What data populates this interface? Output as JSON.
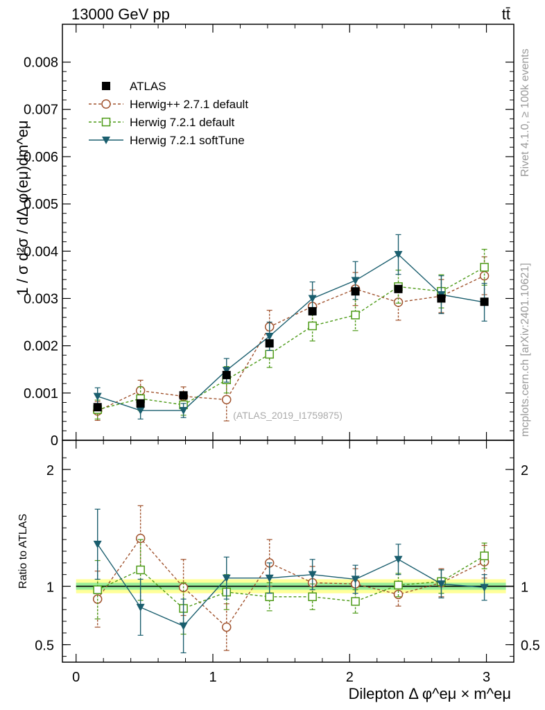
{
  "header": {
    "energy_label": "13000 GeV pp",
    "process_label": "tt̄",
    "side_label_top": "Rivet 4.1.0, ≥ 100k events",
    "side_label_bottom": "mcplots.cern.ch [arXiv:2401.10621]",
    "analysis_id": "(ATLAS_2019_I1759875)"
  },
  "chart_data": [
    {
      "type": "scatter",
      "panel": "main",
      "ylabel": "1 / σ d²σ / dΔ φ(eμ)dm^eμ",
      "xlabel": "Dilepton Δ φ^eμ × m^eμ",
      "xlim": [
        -0.1,
        3.2
      ],
      "ylim": [
        0,
        0.0088
      ],
      "xticks": [
        0,
        1,
        2,
        3
      ],
      "yticks": [
        0,
        0.001,
        0.002,
        0.003,
        0.004,
        0.005,
        0.006,
        0.007,
        0.008
      ],
      "ytick_labels": [
        "0",
        "0.001",
        "0.002",
        "0.003",
        "0.004",
        "0.005",
        "0.006",
        "0.007",
        "0.008"
      ],
      "x": [
        0.157,
        0.471,
        0.785,
        1.1,
        1.414,
        1.728,
        2.042,
        2.356,
        2.67,
        2.985
      ],
      "series": [
        {
          "name": "ATLAS",
          "color": "#000000",
          "marker": "filled-square",
          "line": "none",
          "values": [
            0.0007,
            0.00078,
            0.00095,
            0.00138,
            0.00205,
            0.00273,
            0.00315,
            0.0032,
            0.003,
            0.00293
          ],
          "errors": [
            5e-05,
            5e-05,
            5e-05,
            6e-05,
            6e-05,
            6e-05,
            6e-05,
            6e-05,
            6e-05,
            6e-05
          ]
        },
        {
          "name": "Herwig++ 2.7.1 default",
          "color": "#a0522d",
          "marker": "open-circle",
          "line": "dashed",
          "values": [
            0.00062,
            0.00105,
            0.00093,
            0.00086,
            0.0024,
            0.00283,
            0.0032,
            0.00292,
            0.00305,
            0.00348
          ],
          "errors": [
            0.0002,
            0.00022,
            0.0002,
            0.00045,
            0.00035,
            0.00035,
            0.00035,
            0.00038,
            0.00035,
            0.0004
          ]
        },
        {
          "name": "Herwig 7.2.1 default",
          "color": "#4c9a16",
          "marker": "open-square",
          "line": "dashed",
          "values": [
            0.00065,
            0.00088,
            0.00075,
            0.00128,
            0.00182,
            0.00242,
            0.00265,
            0.00325,
            0.00315,
            0.00366
          ],
          "errors": [
            0.0002,
            0.00025,
            0.00022,
            0.00028,
            0.00028,
            0.00032,
            0.00033,
            0.00035,
            0.00035,
            0.00038
          ]
        },
        {
          "name": "Herwig 7.2.1 softTune",
          "color": "#1a5e6e",
          "marker": "down-triangle",
          "line": "solid",
          "values": [
            0.00093,
            0.00063,
            0.00063,
            0.00148,
            0.0022,
            0.003,
            0.00338,
            0.00393,
            0.00308,
            0.00292
          ],
          "errors": [
            0.00018,
            0.00018,
            0.00015,
            0.00025,
            0.0003,
            0.00035,
            0.0004,
            0.00042,
            0.0004,
            0.0004
          ]
        }
      ]
    },
    {
      "type": "scatter",
      "panel": "ratio",
      "ylabel": "Ratio to ATLAS",
      "xlim": [
        -0.1,
        3.2
      ],
      "ylim": [
        0.35,
        2.25
      ],
      "yticks": [
        0.5,
        1,
        2
      ],
      "ytick_labels": [
        "0.5",
        "1",
        "2"
      ],
      "reference_band": {
        "inner": 0.03,
        "outer": 0.06
      },
      "series": [
        {
          "name": "Herwig++ 2.7.1 default",
          "values": [
            0.89,
            1.41,
            0.99,
            0.65,
            1.2,
            1.03,
            1.02,
            0.93,
            1.03,
            1.21
          ],
          "errors": [
            0.24,
            0.28,
            0.24,
            0.2,
            0.2,
            0.14,
            0.13,
            0.1,
            0.12,
            0.14
          ]
        },
        {
          "name": "Herwig 7.2.1 default",
          "values": [
            0.97,
            1.14,
            0.81,
            0.95,
            0.91,
            0.91,
            0.87,
            1.01,
            1.04,
            1.26
          ],
          "errors": [
            0.25,
            0.26,
            0.22,
            0.15,
            0.12,
            0.11,
            0.1,
            0.1,
            0.1,
            0.11
          ]
        },
        {
          "name": "Herwig 7.2.1 softTune",
          "values": [
            1.36,
            0.82,
            0.66,
            1.07,
            1.07,
            1.1,
            1.06,
            1.23,
            1.02,
            0.99
          ],
          "errors": [
            0.3,
            0.24,
            0.23,
            0.18,
            0.13,
            0.13,
            0.12,
            0.13,
            0.12,
            0.11
          ]
        }
      ]
    }
  ]
}
